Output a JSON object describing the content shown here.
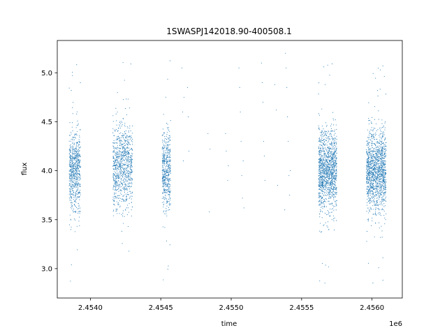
{
  "chart_data": {
    "type": "scatter",
    "title": "1SWASPJ142018.90-400508.1",
    "xlabel": "time",
    "ylabel": "flux",
    "x_offset_label": "1e6",
    "xlim": [
      2453765,
      2456215
    ],
    "ylim": [
      2.7,
      5.33
    ],
    "xticks": [
      2.454,
      2.4545,
      2.455,
      2.4555,
      2.456
    ],
    "xtick_labels": [
      "2.4540",
      "2.4545",
      "2.4550",
      "2.4555",
      "2.4560"
    ],
    "yticks": [
      3.0,
      3.5,
      4.0,
      4.5,
      5.0
    ],
    "ytick_labels": [
      "3.0",
      "3.5",
      "4.0",
      "4.5",
      "5.0"
    ],
    "grid": false,
    "marker_color": "#1f77b4",
    "series": [
      {
        "clusters": [
          {
            "x_start": 2453850,
            "x_end": 2453930,
            "y_center": 4.0,
            "y_spread": 0.2,
            "n": 700
          },
          {
            "x_start": 2454160,
            "x_end": 2454300,
            "y_center": 4.05,
            "y_spread": 0.22,
            "n": 900
          },
          {
            "x_start": 2454510,
            "x_end": 2454570,
            "y_center": 4.0,
            "y_spread": 0.2,
            "n": 500
          },
          {
            "x_start": 2455620,
            "x_end": 2455750,
            "y_center": 4.0,
            "y_spread": 0.2,
            "n": 1300
          },
          {
            "x_start": 2455960,
            "x_end": 2456100,
            "y_center": 4.0,
            "y_spread": 0.2,
            "n": 1400
          }
        ],
        "sparse_points": [
          [
            2454650,
            5.05
          ],
          [
            2454655,
            4.6
          ],
          [
            2454660,
            4.1
          ],
          [
            2454665,
            4.75
          ],
          [
            2454690,
            4.85
          ],
          [
            2454695,
            4.55
          ],
          [
            2454700,
            4.2
          ],
          [
            2454835,
            4.38
          ],
          [
            2454850,
            4.22
          ],
          [
            2454845,
            3.58
          ],
          [
            2454960,
            4.38
          ],
          [
            2454965,
            4.2
          ],
          [
            2454975,
            3.9
          ],
          [
            2454980,
            4.05
          ],
          [
            2455055,
            5.05
          ],
          [
            2455060,
            4.85
          ],
          [
            2455065,
            4.6
          ],
          [
            2455070,
            4.3
          ],
          [
            2455075,
            3.95
          ],
          [
            2455080,
            3.72
          ],
          [
            2455085,
            4.1
          ],
          [
            2455090,
            3.62
          ],
          [
            2455215,
            5.1
          ],
          [
            2455220,
            4.9
          ],
          [
            2455225,
            4.7
          ],
          [
            2455230,
            4.3
          ],
          [
            2455235,
            4.15
          ],
          [
            2455240,
            3.9
          ],
          [
            2455310,
            4.88
          ],
          [
            2455320,
            4.62
          ],
          [
            2455330,
            3.85
          ],
          [
            2455385,
            5.2
          ],
          [
            2455390,
            5.05
          ],
          [
            2455395,
            4.85
          ],
          [
            2455400,
            4.55
          ],
          [
            2455405,
            4.3
          ],
          [
            2455410,
            3.95
          ],
          [
            2455415,
            3.75
          ],
          [
            2455420,
            4.0
          ],
          [
            2455380,
            3.6
          ]
        ]
      }
    ]
  }
}
